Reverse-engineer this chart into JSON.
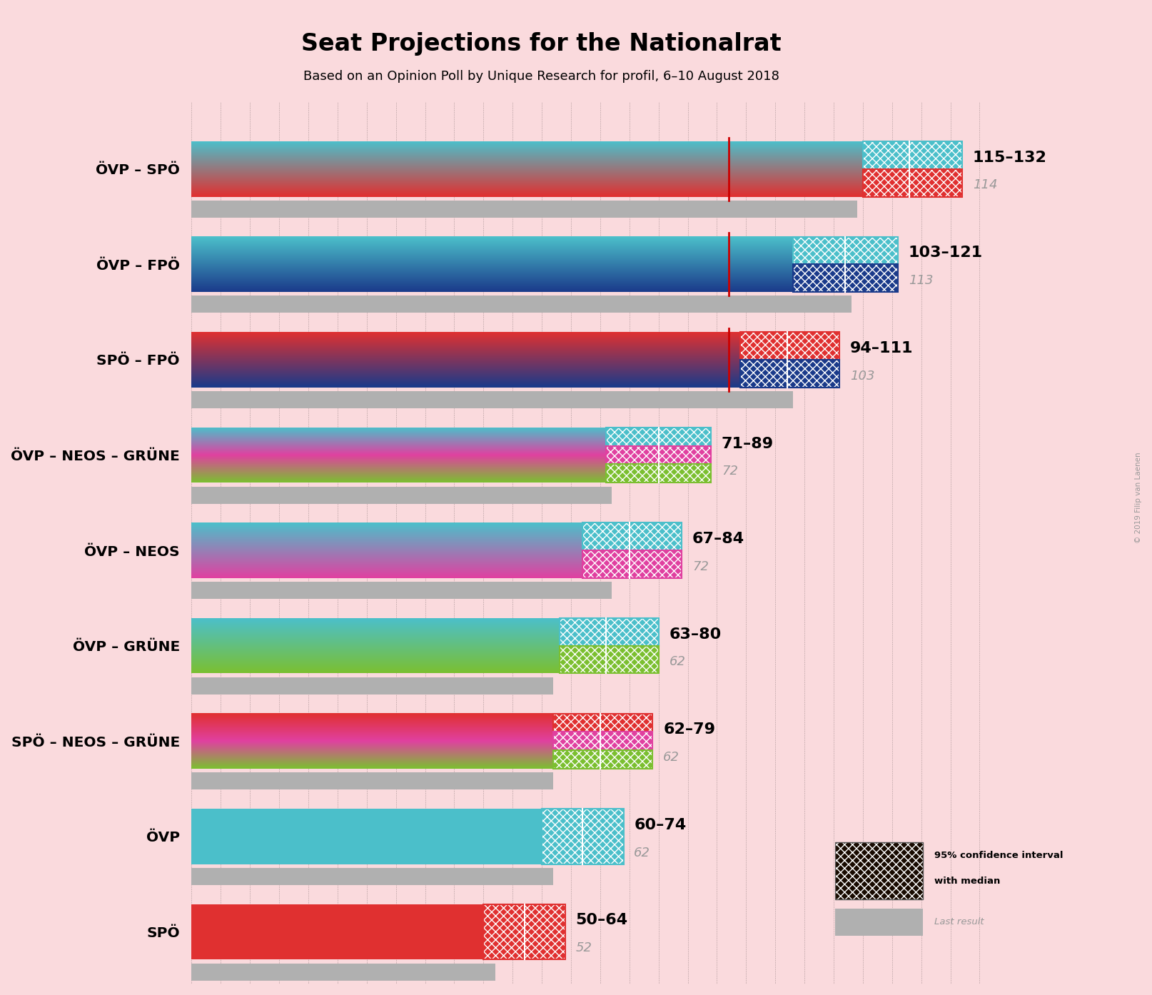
{
  "title": "Seat Projections for the Nationalrat",
  "subtitle": "Based on an Opinion Poll by Unique Research for profil, 6–10 August 2018",
  "background_color": "#fadadd",
  "coalitions": [
    {
      "name": "ÖVP – SPÖ",
      "low": 115,
      "high": 132,
      "median": 123,
      "last": 114,
      "colors": [
        "#4bbfca",
        "#e03030"
      ]
    },
    {
      "name": "ÖVP – FPÖ",
      "low": 103,
      "high": 121,
      "median": 112,
      "last": 113,
      "colors": [
        "#4bbfca",
        "#1a3a8a"
      ]
    },
    {
      "name": "SPÖ – FPÖ",
      "low": 94,
      "high": 111,
      "median": 102,
      "last": 103,
      "colors": [
        "#e03030",
        "#1a3a8a"
      ]
    },
    {
      "name": "ÖVP – NEOS – GRÜNE",
      "low": 71,
      "high": 89,
      "median": 80,
      "last": 72,
      "colors": [
        "#4bbfca",
        "#e040a0",
        "#7bbf30"
      ]
    },
    {
      "name": "ÖVP – NEOS",
      "low": 67,
      "high": 84,
      "median": 75,
      "last": 72,
      "colors": [
        "#4bbfca",
        "#e040a0"
      ]
    },
    {
      "name": "ÖVP – GRÜNE",
      "low": 63,
      "high": 80,
      "median": 71,
      "last": 62,
      "colors": [
        "#4bbfca",
        "#7bbf30"
      ]
    },
    {
      "name": "SPÖ – NEOS – GRÜNE",
      "low": 62,
      "high": 79,
      "median": 70,
      "last": 62,
      "colors": [
        "#e03030",
        "#e040a0",
        "#7bbf30"
      ]
    },
    {
      "name": "ÖVP",
      "low": 60,
      "high": 74,
      "median": 67,
      "last": 62,
      "colors": [
        "#4bbfca"
      ]
    },
    {
      "name": "SPÖ",
      "low": 50,
      "high": 64,
      "median": 57,
      "last": 52,
      "colors": [
        "#e03030"
      ]
    }
  ],
  "majority_line_value": 92,
  "majority_line_color": "#cc0000",
  "axis_max": 140,
  "last_result_color": "#b0b0b0",
  "copyright": "© 2019 Filip van Laenen"
}
